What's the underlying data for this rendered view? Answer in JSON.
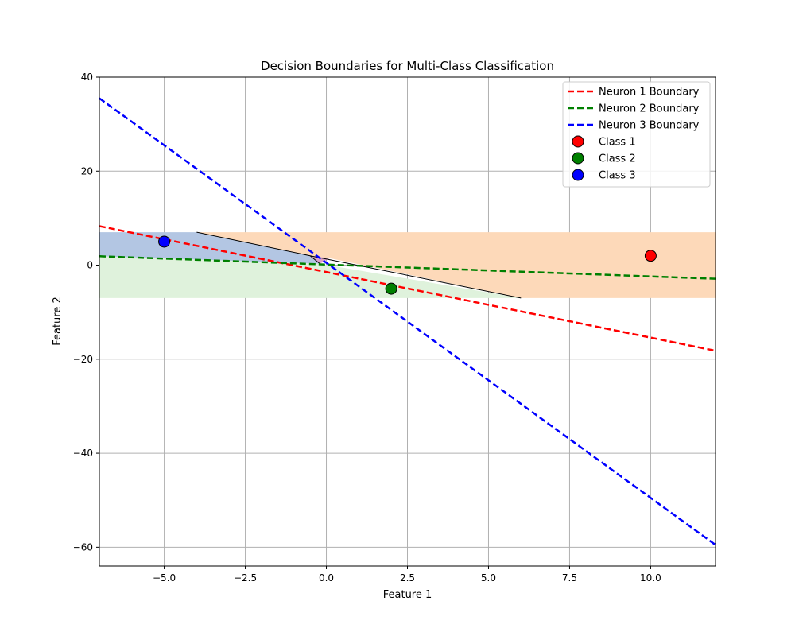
{
  "chart_data": {
    "type": "line",
    "title": "Decision Boundaries for Multi-Class Classification",
    "xlabel": "Feature 1",
    "ylabel": "Feature 2",
    "xlim": [
      -7,
      12
    ],
    "ylim": [
      -64,
      40
    ],
    "x_ticks": [
      -5.0,
      -2.5,
      0.0,
      2.5,
      5.0,
      7.5,
      10.0
    ],
    "x_tick_labels": [
      "−5.0",
      "−2.5",
      "0.0",
      "2.5",
      "5.0",
      "7.5",
      "10.0"
    ],
    "y_ticks": [
      -60,
      -40,
      -20,
      0,
      20,
      40
    ],
    "y_tick_labels": [
      "−60",
      "−40",
      "−20",
      "0",
      "20",
      "40"
    ],
    "grid": true,
    "legend_position": "top-right",
    "regions": [
      {
        "color": "#fdd9b9",
        "points": [
          [
            -4,
            7
          ],
          [
            12,
            7
          ],
          [
            12,
            -7
          ],
          [
            6,
            -7
          ],
          [
            0.1,
            1.5
          ],
          [
            -0.5,
            2
          ]
        ]
      },
      {
        "color": "#b3c6e3",
        "points": [
          [
            -7,
            7
          ],
          [
            -4,
            7
          ],
          [
            -0.5,
            2
          ],
          [
            -0.2,
            0.3
          ],
          [
            -7,
            1.9
          ]
        ]
      },
      {
        "color": "#dff2dc",
        "points": [
          [
            -7,
            1.9
          ],
          [
            -0.2,
            0.3
          ],
          [
            6,
            -7
          ],
          [
            -7,
            -7
          ]
        ]
      },
      {
        "color": "#d9a3c8",
        "points": [
          [
            -0.5,
            2
          ],
          [
            0.1,
            1.5
          ],
          [
            -0.2,
            0.3
          ]
        ]
      }
    ],
    "black_lines": [
      {
        "points": [
          [
            -4,
            7
          ],
          [
            -0.5,
            2
          ],
          [
            6,
            -7
          ]
        ]
      },
      {
        "points": [
          [
            -0.5,
            2
          ],
          [
            -0.2,
            0.3
          ]
        ]
      }
    ],
    "series": [
      {
        "name": "Neuron 1 Boundary",
        "style": "dashed",
        "color": "#ff0000",
        "x": [
          -7,
          12
        ],
        "y": [
          8.3,
          -18.2
        ]
      },
      {
        "name": "Neuron 2 Boundary",
        "style": "dashed",
        "color": "#008000",
        "x": [
          -7,
          12
        ],
        "y": [
          1.9,
          -2.9
        ]
      },
      {
        "name": "Neuron 3 Boundary",
        "style": "dashed",
        "color": "#0000ff",
        "x": [
          -7,
          12
        ],
        "y": [
          35.5,
          -59.5
        ]
      },
      {
        "name": "Class 1",
        "style": "scatter",
        "color": "#ff0000",
        "x": [
          10
        ],
        "y": [
          2
        ]
      },
      {
        "name": "Class 2",
        "style": "scatter",
        "color": "#008000",
        "x": [
          2
        ],
        "y": [
          -5
        ]
      },
      {
        "name": "Class 3",
        "style": "scatter",
        "color": "#0000ff",
        "x": [
          -5
        ],
        "y": [
          5
        ]
      }
    ]
  }
}
